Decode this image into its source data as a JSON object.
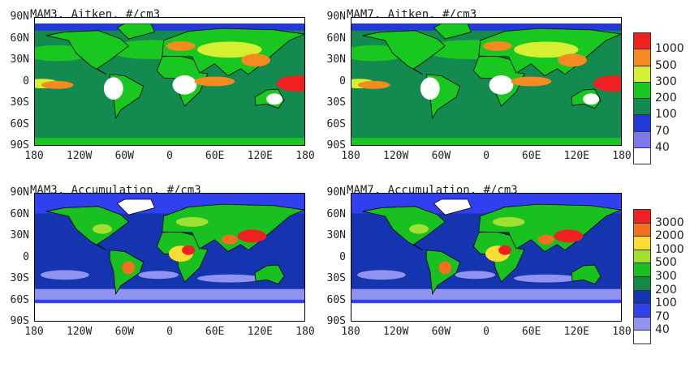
{
  "panels": [
    {
      "title": "MAM3, Aitken, #/cm3",
      "mode": "aitken"
    },
    {
      "title": "MAM7, Aitken, #/cm3",
      "mode": "aitken"
    },
    {
      "title": "MAM3, Accumulation, #/cm3",
      "mode": "accum"
    },
    {
      "title": "MAM7, Accumulation, #/cm3",
      "mode": "accum"
    }
  ],
  "y_ticks": [
    "90N",
    "60N",
    "30N",
    "0",
    "30S",
    "60S",
    "90S"
  ],
  "x_ticks": [
    "180",
    "120W",
    "60W",
    "0",
    "60E",
    "120E",
    "180"
  ],
  "legends": [
    {
      "levels": [
        "1000",
        "500",
        "300",
        "200",
        "100",
        "70",
        "40"
      ],
      "colors": [
        "#f02020",
        "#f58a20",
        "#d4f030",
        "#18c820",
        "#138a50",
        "#2238d8",
        "#7a78f0",
        "#ffffff"
      ]
    },
    {
      "levels": [
        "3000",
        "2000",
        "1000",
        "500",
        "300",
        "200",
        "100",
        "70",
        "40"
      ],
      "colors": [
        "#f02020",
        "#f5701e",
        "#f8de30",
        "#a0e030",
        "#18c020",
        "#158848",
        "#1535b0",
        "#3040f0",
        "#9094f0",
        "#ffffff"
      ]
    }
  ]
}
